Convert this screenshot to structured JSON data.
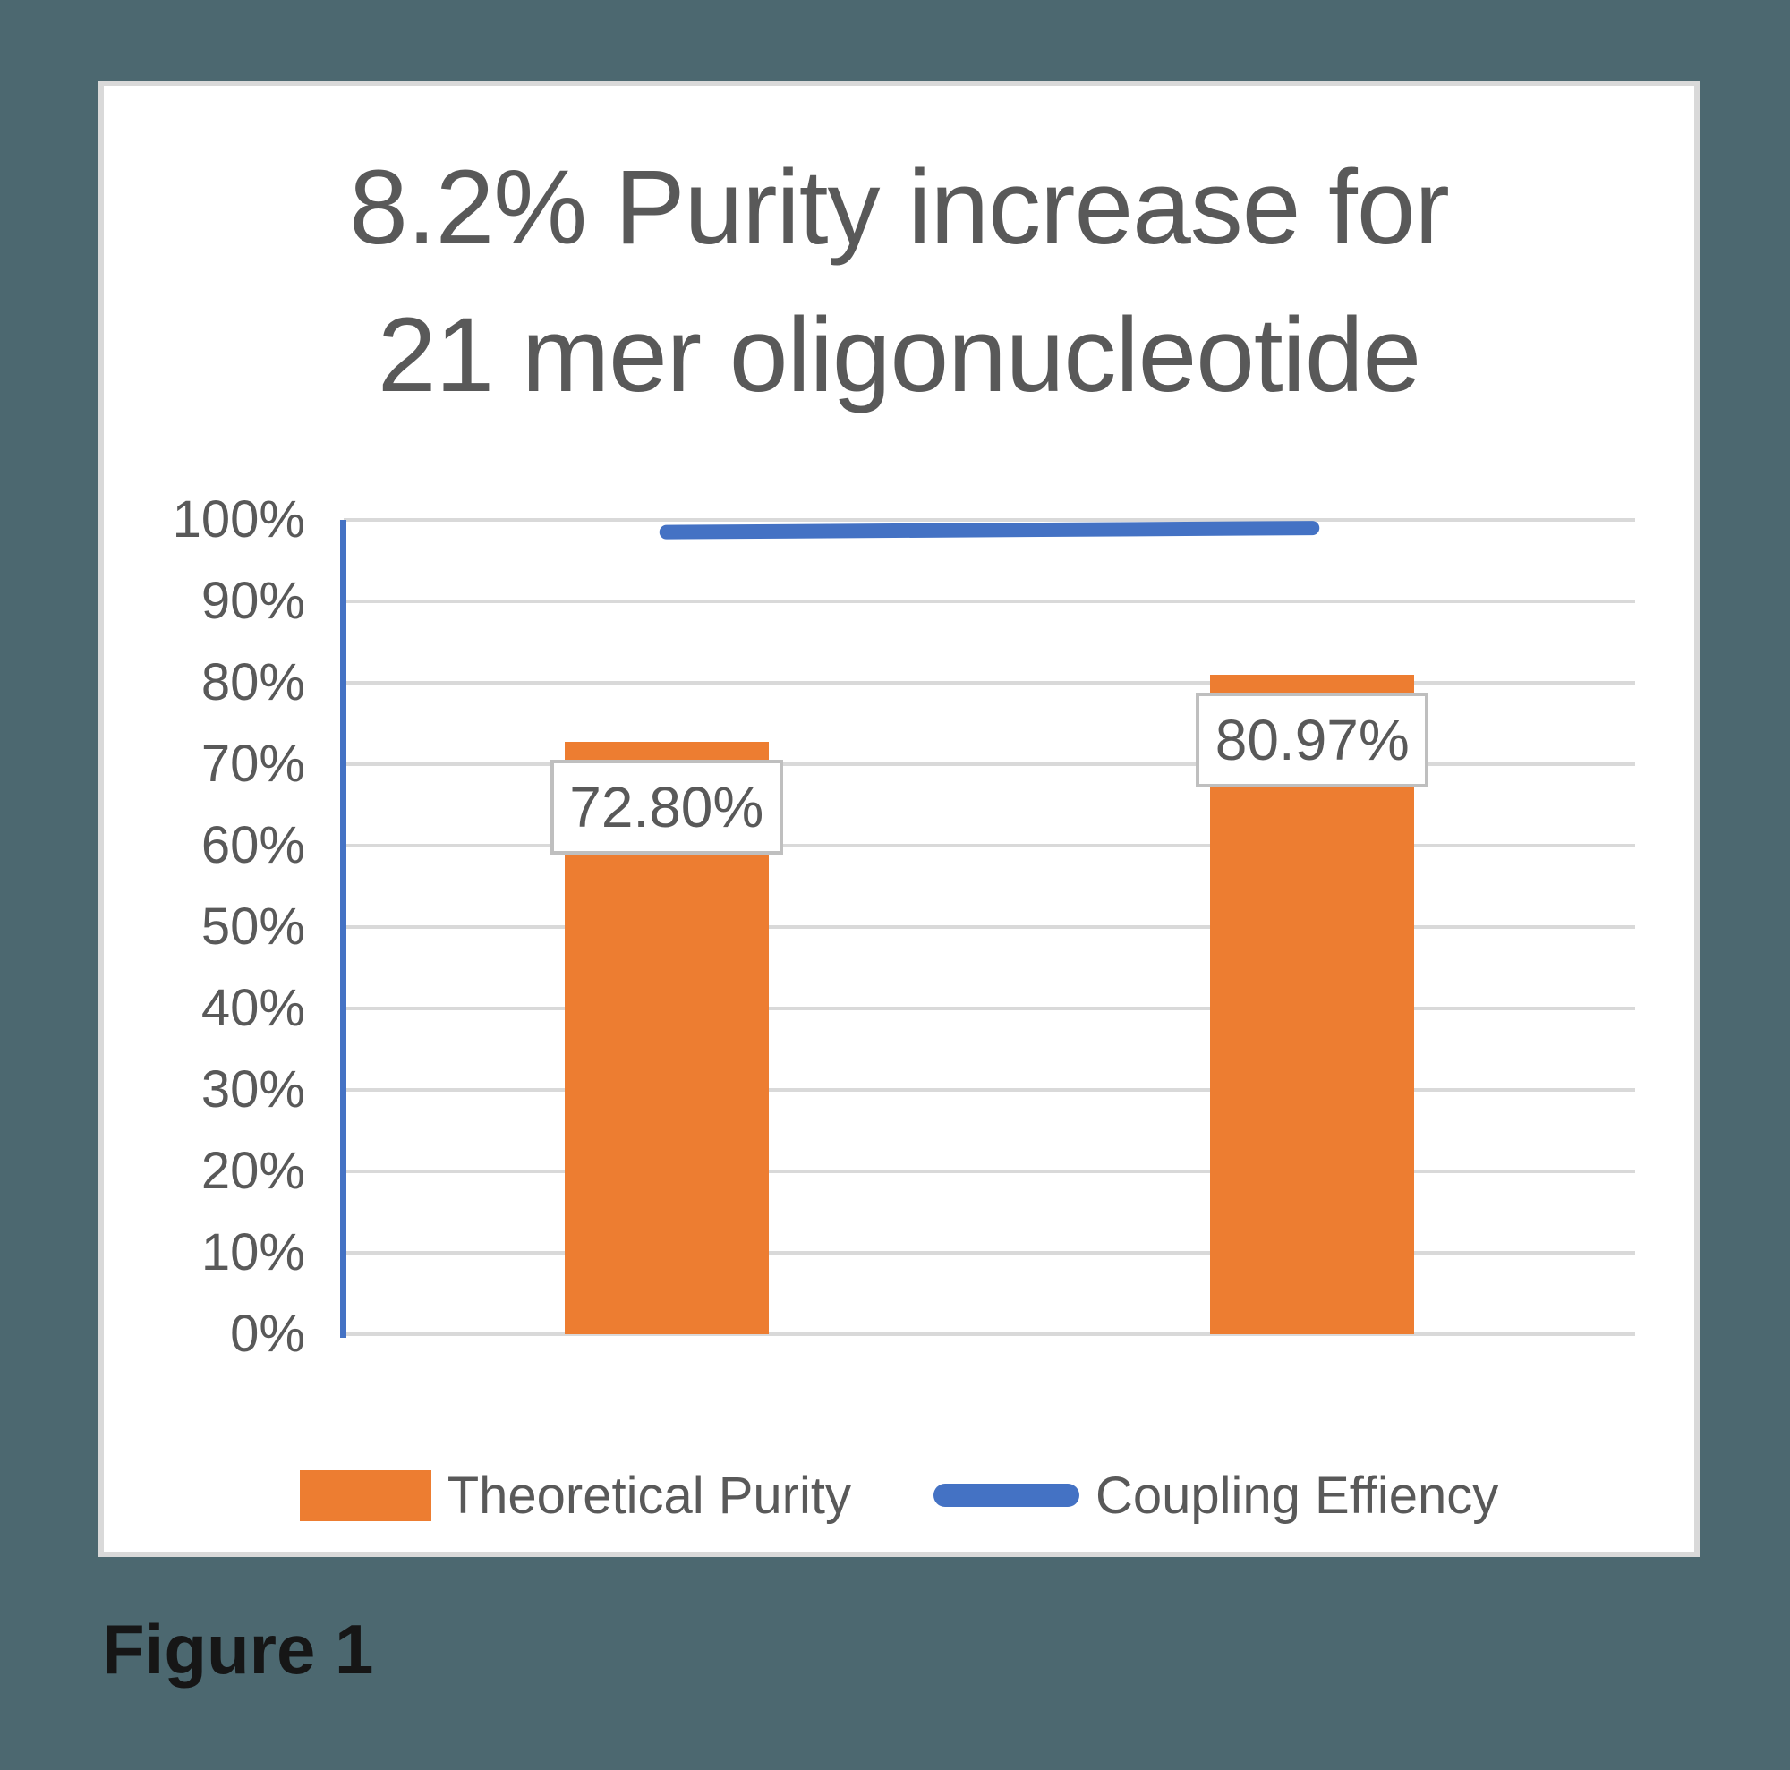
{
  "page": {
    "background_color": "#4C6870",
    "card_color": "#FFFFFF",
    "card_border_color": "#D9D9D9"
  },
  "figure_caption": "Figure 1",
  "chart_data": {
    "type": "combo_bar_line",
    "title": "8.2% Purity increase for 21 mer oligonucleotide",
    "title_lines": [
      "8.2% Purity increase for",
      "21 mer oligonucleotide"
    ],
    "title_color": "#595959",
    "categories": [
      "",
      ""
    ],
    "series": [
      {
        "name": "Theoretical Purity",
        "chart_type": "bar",
        "color": "#ED7D31",
        "values": [
          72.8,
          80.97
        ],
        "data_labels": [
          "72.80%",
          "80.97%"
        ]
      },
      {
        "name": "Coupling Effiency",
        "chart_type": "line",
        "color": "#4472C4",
        "values": [
          98.5,
          99.0
        ],
        "data_labels": []
      }
    ],
    "ylim": [
      0,
      100
    ],
    "ytick_step_percent": 10,
    "ytick_labels": [
      "0%",
      "10%",
      "20%",
      "30%",
      "40%",
      "50%",
      "60%",
      "70%",
      "80%",
      "90%",
      "100%"
    ],
    "grid": true,
    "gridline_color": "#D9D9D9",
    "axis_line_color": "#4472C4",
    "text_color": "#595959",
    "data_label_border_color": "#BFBFBF",
    "legend_position": "bottom"
  }
}
